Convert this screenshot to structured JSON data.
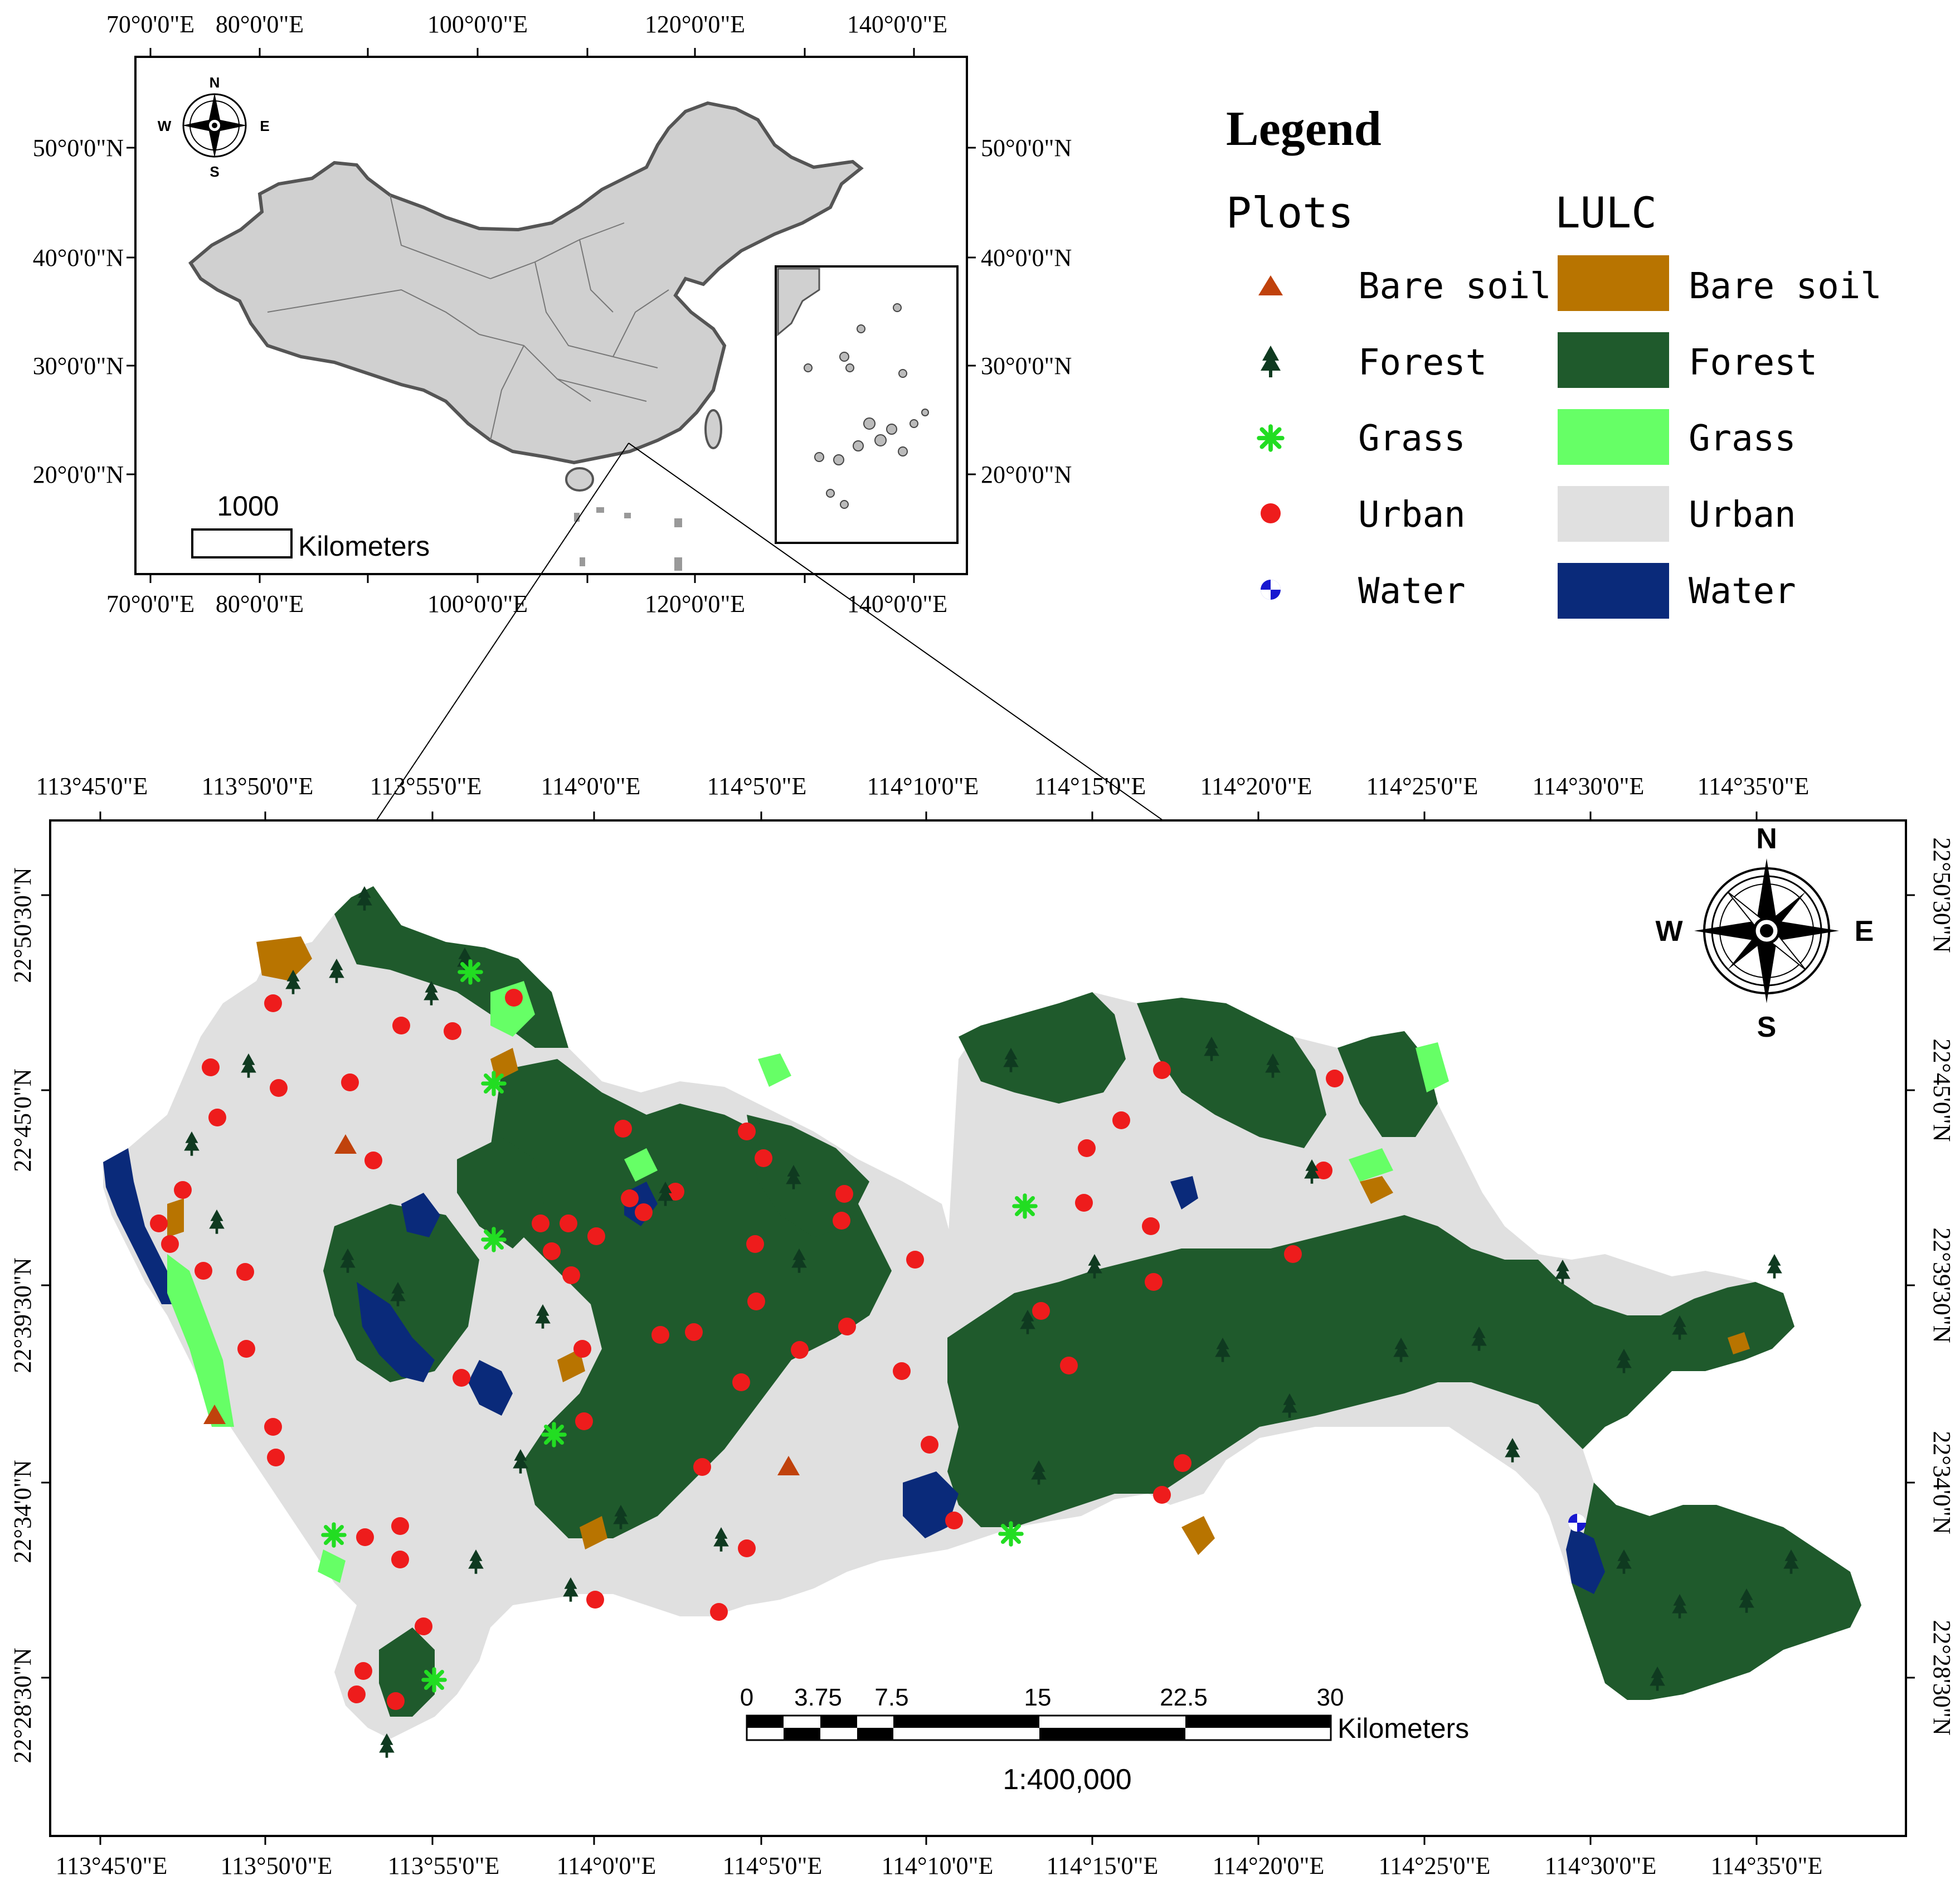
{
  "colors": {
    "bare_soil": "#B87400",
    "forest": "#1F5A2C",
    "grass": "#66FF66",
    "urban": "#E0E0E0",
    "water": "#0A2A7A",
    "china_fill": "#D0D0D0",
    "plot_bare_soil": "#C0420C",
    "plot_forest": "#0F3A20",
    "plot_grass": "#22DD22",
    "plot_urban": "#EE1C1C",
    "plot_water": "#1818D0"
  },
  "legend": {
    "title": "Legend",
    "plots_heading": "Plots",
    "lulc_heading": "LULC",
    "plots": [
      {
        "key": "bare_soil",
        "label": "Bare soil",
        "symbol": "triangle"
      },
      {
        "key": "forest",
        "label": "Forest",
        "symbol": "tree"
      },
      {
        "key": "grass",
        "label": "Grass",
        "symbol": "asterisk"
      },
      {
        "key": "urban",
        "label": "Urban",
        "symbol": "circle"
      },
      {
        "key": "water",
        "label": "Water",
        "symbol": "quartered-circle"
      }
    ],
    "lulc": [
      {
        "key": "bare_soil",
        "label": "Bare soil"
      },
      {
        "key": "forest",
        "label": "Forest"
      },
      {
        "key": "grass",
        "label": "Grass"
      },
      {
        "key": "urban",
        "label": "Urban"
      },
      {
        "key": "water",
        "label": "Water"
      }
    ]
  },
  "inset_map": {
    "top_labels": [
      "70°0'0\"E",
      "80°0'0\"E",
      "100°0'0\"E",
      "120°0'0\"E",
      "140°0'0\"E"
    ],
    "bottom_labels": [
      "70°0'0\"E",
      "80°0'0\"E",
      "100°0'0\"E",
      "120°0'0\"E",
      "140°0'0\"E"
    ],
    "left_labels": [
      "50°0'0\"N",
      "40°0'0\"N",
      "30°0'0\"N",
      "20°0'0\"N"
    ],
    "right_labels": [
      "50°0'0\"N",
      "40°0'0\"N",
      "30°0'0\"N",
      "20°0'0\"N"
    ],
    "scale_value": "1000",
    "scale_unit": "Kilometers",
    "compass": {
      "n": "N",
      "s": "S",
      "e": "E",
      "w": "W"
    }
  },
  "main_map": {
    "top_labels": [
      "113°45'0\"E",
      "113°50'0\"E",
      "113°55'0\"E",
      "114°0'0\"E",
      "114°5'0\"E",
      "114°10'0\"E",
      "114°15'0\"E",
      "114°20'0\"E",
      "114°25'0\"E",
      "114°30'0\"E",
      "114°35'0\"E"
    ],
    "bottom_labels": [
      "113°45'0\"E",
      "113°50'0\"E",
      "113°55'0\"E",
      "114°0'0\"E",
      "114°5'0\"E",
      "114°10'0\"E",
      "114°15'0\"E",
      "114°20'0\"E",
      "114°25'0\"E",
      "114°30'0\"E",
      "114°35'0\"E"
    ],
    "left_labels": [
      "22°50'30\"N",
      "22°45'0\"N",
      "22°39'30\"N",
      "22°34'0\"N",
      "22°28'30\"N"
    ],
    "right_labels": [
      "22°50'30\"N",
      "22°45'0\"N",
      "22°39'30\"N",
      "22°34'0\"N",
      "22°28'30\"N"
    ],
    "scale_ticks": [
      "0",
      "3.75",
      "7.5",
      "15",
      "22.5",
      "30"
    ],
    "scale_unit": "Kilometers",
    "ratio": "1:400,000",
    "compass": {
      "n": "N",
      "s": "S",
      "e": "E",
      "w": "W"
    }
  }
}
